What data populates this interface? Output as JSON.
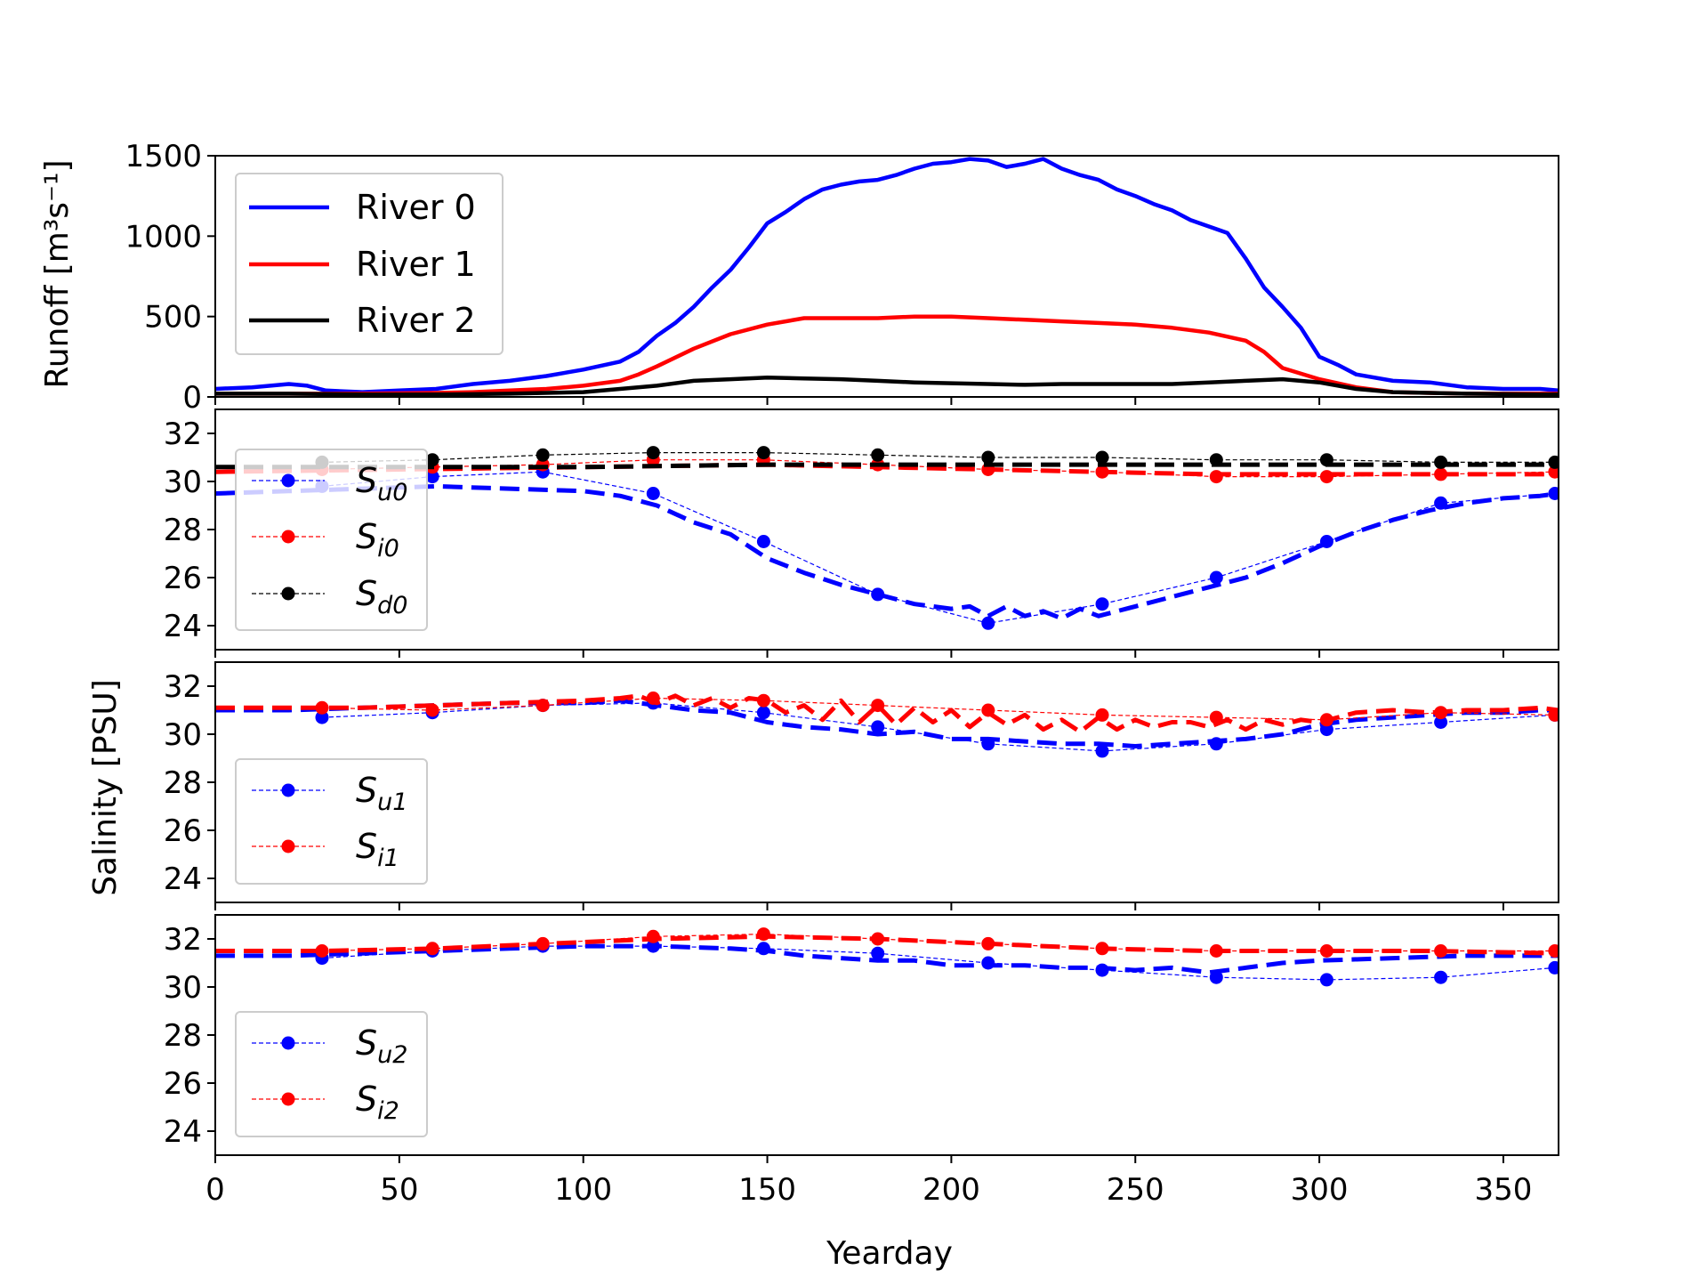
{
  "figure": {
    "xlabel": "Yearday",
    "salinity_ylabel": "Salinity [PSU]"
  },
  "chart_data": [
    {
      "type": "line",
      "panel": "runoff",
      "ylabel": "Runoff [m³s⁻¹]",
      "xlim": [
        0,
        365
      ],
      "ylim": [
        0,
        1500
      ],
      "yticks": [
        0,
        500,
        1000,
        1500
      ],
      "legend_position": "upper-left",
      "series": [
        {
          "name": "River 0",
          "color": "#0000ff",
          "x": [
            0,
            10,
            20,
            25,
            30,
            40,
            50,
            60,
            70,
            80,
            90,
            100,
            110,
            115,
            120,
            125,
            130,
            135,
            140,
            145,
            150,
            155,
            160,
            165,
            170,
            175,
            180,
            185,
            190,
            195,
            200,
            205,
            210,
            215,
            220,
            225,
            230,
            235,
            240,
            245,
            250,
            255,
            260,
            265,
            270,
            275,
            280,
            285,
            290,
            295,
            300,
            305,
            310,
            320,
            330,
            340,
            350,
            360,
            365
          ],
          "y": [
            50,
            60,
            80,
            70,
            40,
            30,
            40,
            50,
            80,
            100,
            130,
            170,
            220,
            280,
            380,
            460,
            560,
            680,
            790,
            930,
            1080,
            1150,
            1230,
            1290,
            1320,
            1340,
            1350,
            1380,
            1420,
            1450,
            1460,
            1480,
            1470,
            1430,
            1450,
            1480,
            1420,
            1380,
            1350,
            1290,
            1250,
            1200,
            1160,
            1100,
            1060,
            1020,
            860,
            680,
            560,
            430,
            250,
            200,
            140,
            100,
            90,
            60,
            50,
            50,
            40
          ]
        },
        {
          "name": "River 1",
          "color": "#ff0000",
          "x": [
            0,
            20,
            40,
            60,
            70,
            80,
            90,
            100,
            110,
            115,
            120,
            130,
            140,
            150,
            160,
            170,
            180,
            190,
            200,
            210,
            220,
            230,
            240,
            250,
            260,
            270,
            280,
            285,
            290,
            300,
            310,
            320,
            340,
            360,
            365
          ],
          "y": [
            20,
            20,
            20,
            25,
            30,
            40,
            50,
            70,
            100,
            140,
            190,
            300,
            390,
            450,
            490,
            490,
            490,
            500,
            500,
            490,
            480,
            470,
            460,
            450,
            430,
            400,
            350,
            280,
            180,
            110,
            60,
            30,
            20,
            20,
            20
          ]
        },
        {
          "name": "River 2",
          "color": "#000000",
          "x": [
            0,
            20,
            40,
            60,
            80,
            100,
            110,
            120,
            130,
            140,
            150,
            160,
            170,
            180,
            190,
            200,
            210,
            220,
            230,
            240,
            250,
            260,
            270,
            280,
            290,
            300,
            310,
            320,
            340,
            360,
            365
          ],
          "y": [
            20,
            20,
            15,
            15,
            20,
            30,
            50,
            70,
            100,
            110,
            120,
            115,
            110,
            100,
            90,
            85,
            80,
            75,
            80,
            80,
            80,
            80,
            90,
            100,
            110,
            90,
            50,
            30,
            20,
            15,
            15
          ]
        }
      ]
    },
    {
      "type": "line",
      "panel": "salinity-0",
      "xlim": [
        0,
        365
      ],
      "ylim": [
        23,
        33
      ],
      "yticks": [
        24,
        26,
        28,
        30,
        32
      ],
      "legend_position": "lower-left",
      "series": [
        {
          "name": "S_u0",
          "label_main": "S",
          "label_sub": "u0",
          "color": "#0000ff",
          "points_x": [
            29,
            59,
            89,
            119,
            149,
            180,
            210,
            241,
            272,
            302,
            333,
            364
          ],
          "points_y": [
            29.8,
            30.2,
            30.4,
            29.5,
            27.5,
            25.3,
            24.1,
            24.9,
            26.0,
            27.5,
            29.1,
            29.5
          ],
          "model_x": [
            0,
            20,
            40,
            60,
            80,
            100,
            110,
            120,
            130,
            140,
            150,
            160,
            170,
            180,
            190,
            200,
            205,
            210,
            215,
            220,
            225,
            230,
            235,
            240,
            250,
            260,
            270,
            280,
            290,
            300,
            310,
            320,
            330,
            340,
            350,
            360,
            365
          ],
          "model_y": [
            29.5,
            29.6,
            29.7,
            29.8,
            29.7,
            29.6,
            29.4,
            29.0,
            28.3,
            27.8,
            26.8,
            26.2,
            25.7,
            25.3,
            24.9,
            24.7,
            24.8,
            24.4,
            24.8,
            24.4,
            24.6,
            24.3,
            24.7,
            24.4,
            24.8,
            25.2,
            25.6,
            26.0,
            26.6,
            27.3,
            27.9,
            28.4,
            28.8,
            29.1,
            29.3,
            29.4,
            29.5
          ]
        },
        {
          "name": "S_i0",
          "label_main": "S",
          "label_sub": "i0",
          "color": "#ff0000",
          "points_x": [
            29,
            59,
            89,
            119,
            149,
            180,
            210,
            241,
            272,
            302,
            333,
            364
          ],
          "points_y": [
            30.5,
            30.6,
            30.7,
            30.9,
            30.9,
            30.7,
            30.5,
            30.4,
            30.2,
            30.2,
            30.3,
            30.4
          ],
          "model_x": [
            0,
            50,
            100,
            150,
            180,
            210,
            240,
            270,
            300,
            330,
            365
          ],
          "model_y": [
            30.4,
            30.5,
            30.6,
            30.7,
            30.6,
            30.5,
            30.4,
            30.3,
            30.3,
            30.3,
            30.3
          ]
        },
        {
          "name": "S_d0",
          "label_main": "S",
          "label_sub": "d0",
          "color": "#000000",
          "points_x": [
            29,
            59,
            89,
            119,
            149,
            180,
            210,
            241,
            272,
            302,
            333,
            364
          ],
          "points_y": [
            30.8,
            30.9,
            31.1,
            31.2,
            31.2,
            31.1,
            31.0,
            31.0,
            30.9,
            30.9,
            30.8,
            30.8
          ],
          "model_x": [
            0,
            50,
            100,
            150,
            200,
            250,
            300,
            365
          ],
          "model_y": [
            30.6,
            30.6,
            30.6,
            30.7,
            30.7,
            30.7,
            30.7,
            30.7
          ]
        }
      ]
    },
    {
      "type": "line",
      "panel": "salinity-1",
      "xlim": [
        0,
        365
      ],
      "ylim": [
        23,
        33
      ],
      "yticks": [
        24,
        26,
        28,
        30,
        32
      ],
      "legend_position": "lower-left",
      "series": [
        {
          "name": "S_u1",
          "label_main": "S",
          "label_sub": "u1",
          "color": "#0000ff",
          "points_x": [
            29,
            59,
            89,
            119,
            149,
            180,
            210,
            241,
            272,
            302,
            333,
            364
          ],
          "points_y": [
            30.7,
            30.9,
            31.2,
            31.3,
            30.9,
            30.3,
            29.6,
            29.3,
            29.6,
            30.2,
            30.5,
            30.8
          ],
          "model_x": [
            0,
            20,
            40,
            60,
            80,
            100,
            110,
            120,
            130,
            140,
            150,
            160,
            170,
            180,
            190,
            200,
            210,
            220,
            230,
            240,
            250,
            260,
            270,
            280,
            290,
            300,
            310,
            320,
            330,
            340,
            350,
            360,
            365
          ],
          "model_y": [
            31.0,
            31.0,
            31.1,
            31.2,
            31.3,
            31.3,
            31.4,
            31.2,
            31.0,
            30.9,
            30.5,
            30.3,
            30.2,
            30.0,
            30.1,
            29.8,
            29.8,
            29.7,
            29.6,
            29.6,
            29.5,
            29.6,
            29.7,
            29.8,
            30.0,
            30.4,
            30.6,
            30.7,
            30.8,
            30.9,
            30.9,
            31.0,
            31.0
          ]
        },
        {
          "name": "S_i1",
          "label_main": "S",
          "label_sub": "i1",
          "color": "#ff0000",
          "points_x": [
            29,
            59,
            89,
            119,
            149,
            180,
            210,
            241,
            272,
            302,
            333,
            364
          ],
          "points_y": [
            31.1,
            31.0,
            31.2,
            31.5,
            31.4,
            31.2,
            31.0,
            30.8,
            30.7,
            30.6,
            30.9,
            30.8
          ],
          "model_x": [
            0,
            20,
            40,
            60,
            80,
            100,
            110,
            115,
            120,
            125,
            130,
            135,
            140,
            145,
            150,
            155,
            160,
            165,
            170,
            175,
            180,
            185,
            190,
            195,
            200,
            205,
            210,
            215,
            220,
            225,
            230,
            235,
            240,
            245,
            250,
            255,
            260,
            265,
            270,
            275,
            280,
            285,
            290,
            295,
            300,
            310,
            320,
            330,
            340,
            350,
            360,
            365
          ],
          "model_y": [
            31.1,
            31.1,
            31.1,
            31.2,
            31.3,
            31.4,
            31.5,
            31.6,
            31.3,
            31.6,
            31.2,
            31.5,
            31.1,
            31.5,
            31.4,
            30.9,
            31.2,
            30.6,
            31.4,
            30.5,
            31.2,
            30.4,
            31.1,
            30.5,
            31.0,
            30.3,
            30.9,
            30.4,
            30.8,
            30.2,
            30.6,
            30.1,
            30.7,
            30.2,
            30.6,
            30.3,
            30.5,
            30.5,
            30.3,
            30.6,
            30.2,
            30.6,
            30.4,
            30.6,
            30.5,
            30.9,
            31.0,
            30.9,
            31.0,
            31.0,
            31.1,
            31.0
          ]
        }
      ]
    },
    {
      "type": "line",
      "panel": "salinity-2",
      "xlim": [
        0,
        365
      ],
      "ylim": [
        23,
        33
      ],
      "yticks": [
        24,
        26,
        28,
        30,
        32
      ],
      "legend_position": "lower-left",
      "series": [
        {
          "name": "S_u2",
          "label_main": "S",
          "label_sub": "u2",
          "color": "#0000ff",
          "points_x": [
            29,
            59,
            89,
            119,
            149,
            180,
            210,
            241,
            272,
            302,
            333,
            364
          ],
          "points_y": [
            31.2,
            31.5,
            31.7,
            31.7,
            31.6,
            31.4,
            31.0,
            30.7,
            30.4,
            30.3,
            30.4,
            30.8
          ],
          "model_x": [
            0,
            20,
            40,
            60,
            80,
            100,
            120,
            140,
            150,
            160,
            170,
            180,
            190,
            200,
            210,
            220,
            230,
            240,
            250,
            260,
            270,
            280,
            290,
            300,
            320,
            340,
            365
          ],
          "model_y": [
            31.3,
            31.3,
            31.4,
            31.5,
            31.6,
            31.7,
            31.7,
            31.6,
            31.5,
            31.3,
            31.2,
            31.1,
            31.1,
            30.9,
            30.9,
            30.9,
            30.8,
            30.8,
            30.7,
            30.8,
            30.6,
            30.8,
            31.0,
            31.1,
            31.2,
            31.3,
            31.3
          ]
        },
        {
          "name": "S_i2",
          "label_main": "S",
          "label_sub": "i2",
          "color": "#ff0000",
          "points_x": [
            29,
            59,
            89,
            119,
            149,
            180,
            210,
            241,
            272,
            302,
            333,
            364
          ],
          "points_y": [
            31.5,
            31.6,
            31.8,
            32.1,
            32.2,
            32.0,
            31.8,
            31.6,
            31.5,
            31.5,
            31.5,
            31.5
          ],
          "model_x": [
            0,
            30,
            60,
            90,
            120,
            150,
            180,
            210,
            240,
            270,
            300,
            330,
            365
          ],
          "model_y": [
            31.5,
            31.5,
            31.6,
            31.8,
            32.0,
            32.1,
            32.0,
            31.8,
            31.6,
            31.5,
            31.5,
            31.5,
            31.4
          ]
        }
      ]
    }
  ]
}
